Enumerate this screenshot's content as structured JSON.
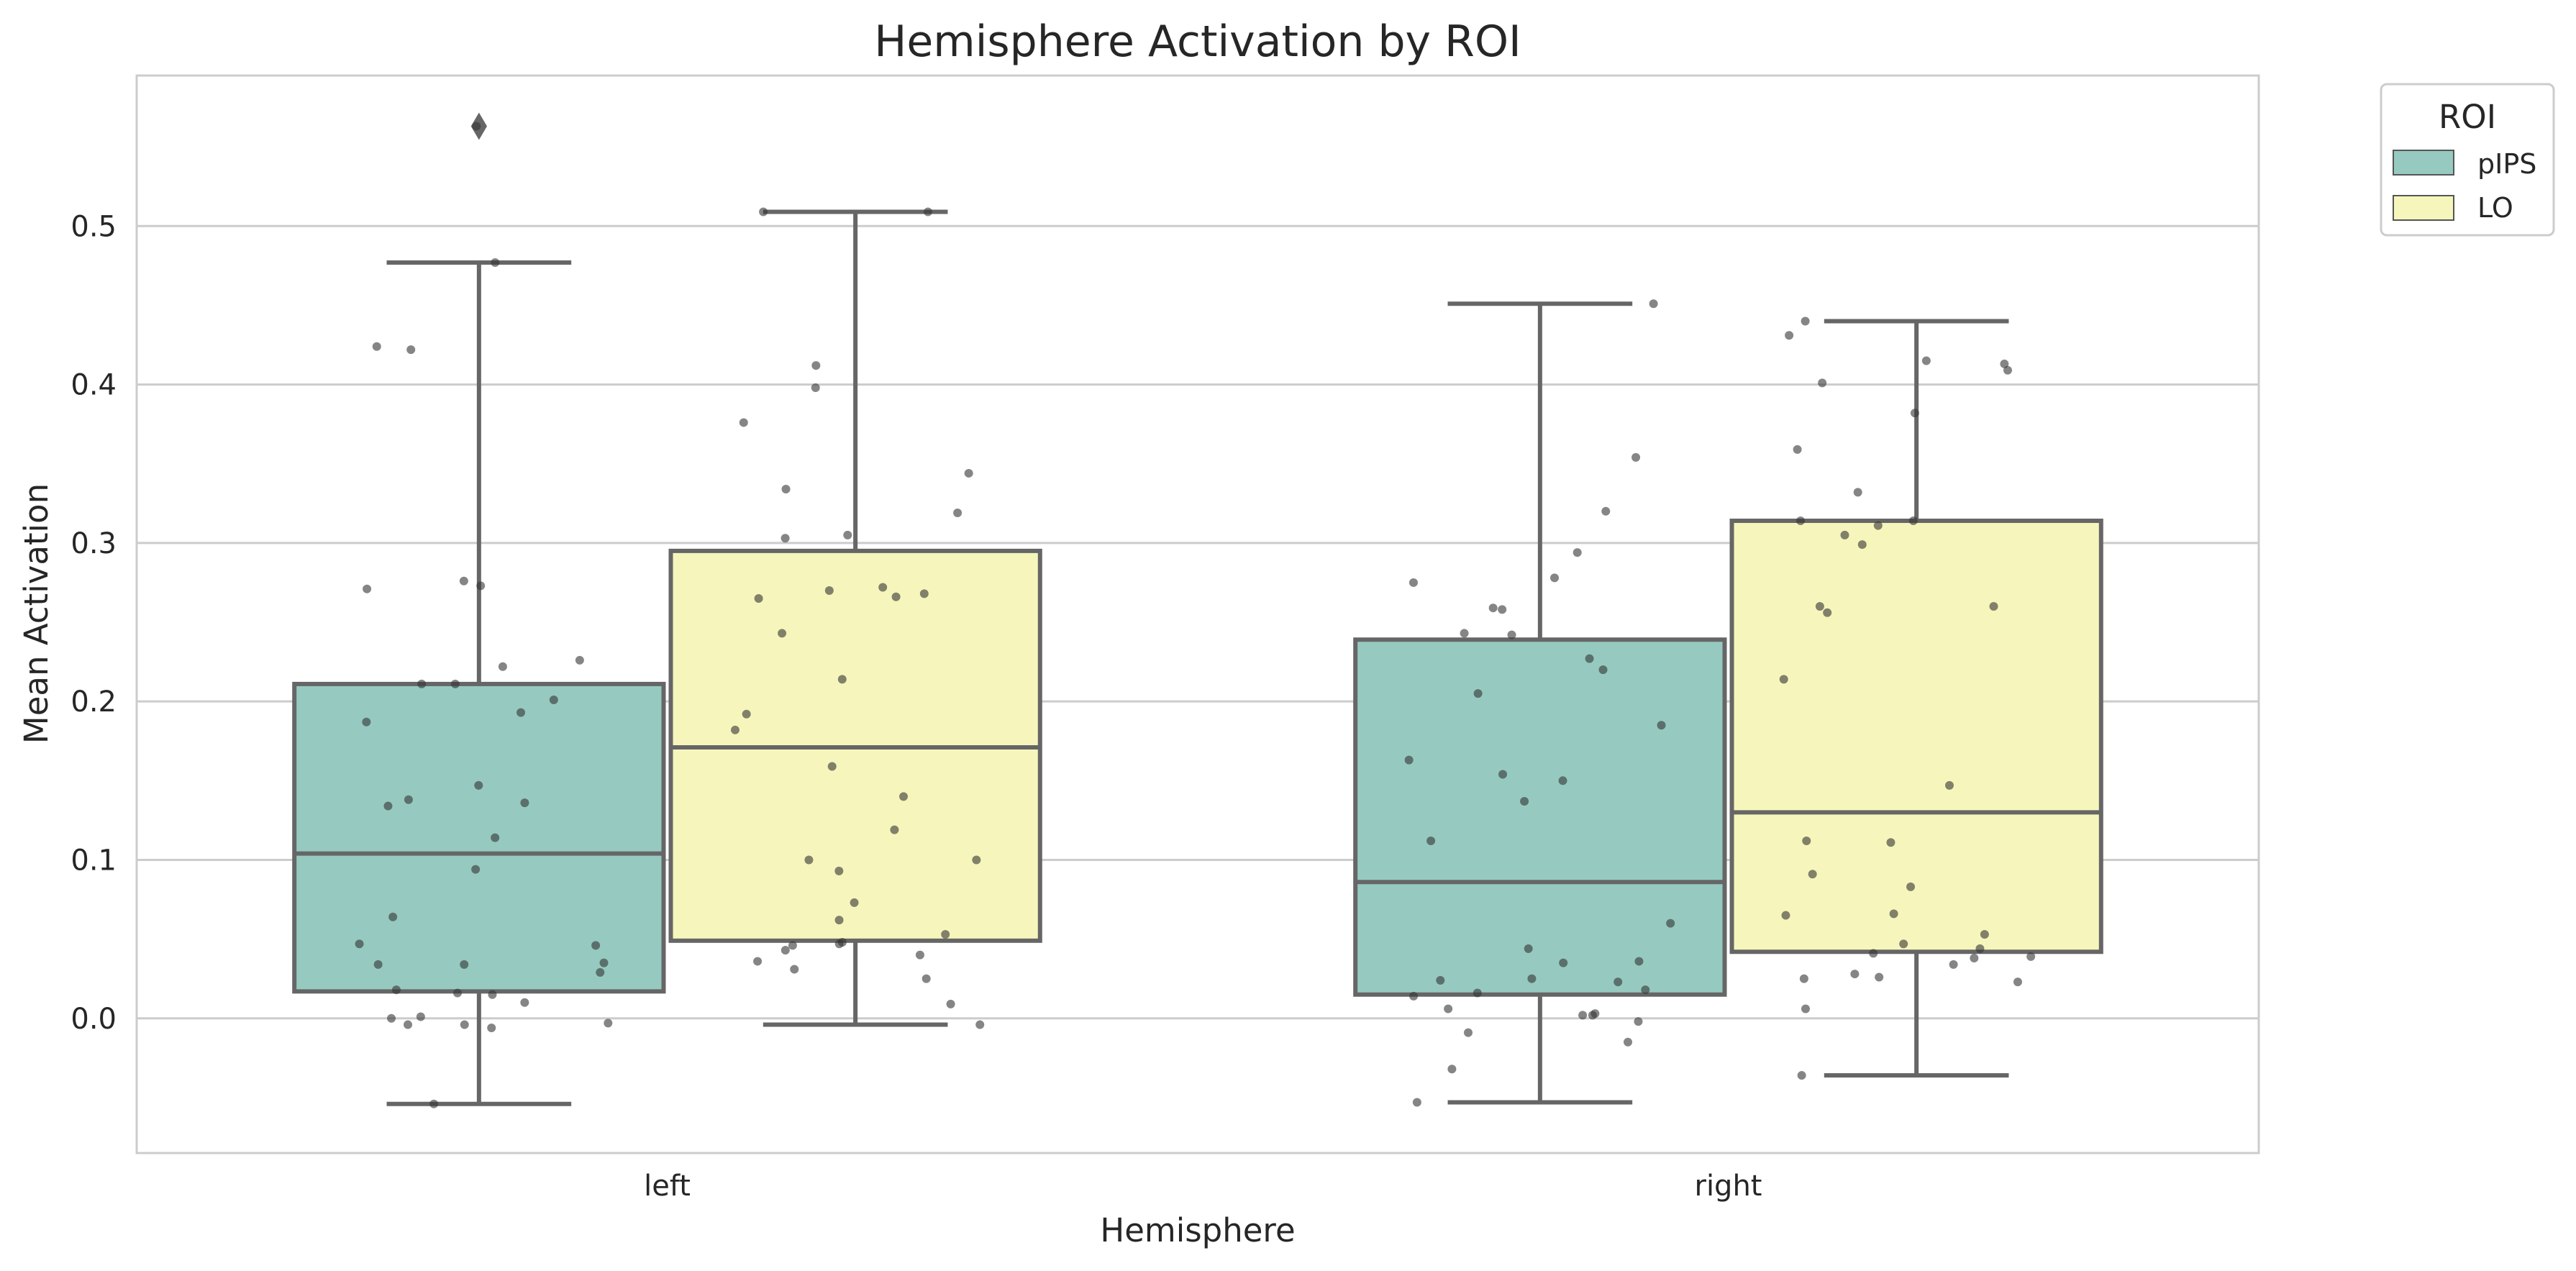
{
  "chart_data": {
    "type": "box",
    "title": "Hemisphere Activation by ROI",
    "xlabel": "Hemisphere",
    "ylabel": "Mean Activation",
    "categories": [
      "left",
      "right"
    ],
    "ylim": [
      -0.085,
      0.595
    ],
    "yticks": [
      0.0,
      0.1,
      0.2,
      0.3,
      0.4,
      0.5
    ],
    "ytick_labels": [
      "0.0",
      "0.1",
      "0.2",
      "0.3",
      "0.4",
      "0.5"
    ],
    "grid": "horizontal",
    "legend": {
      "title": "ROI",
      "placement": "outside-top-right",
      "entries": [
        {
          "label": "pIPS",
          "color": "#96cac1"
        },
        {
          "label": "LO",
          "color": "#f6f6bc"
        }
      ]
    },
    "colors": {
      "box_edge": "#666666",
      "points": "#333333",
      "grid": "#cccccc",
      "axes": "#cccccc"
    },
    "boxes": [
      {
        "category": "left",
        "series": "pIPS",
        "whisker_low": -0.054,
        "q1": 0.017,
        "median": 0.104,
        "q3": 0.211,
        "whisker_high": 0.477,
        "outliers": [
          0.563
        ],
        "points": [
          0.563,
          0.477,
          0.424,
          0.422,
          0.276,
          0.273,
          0.271,
          0.226,
          0.222,
          0.211,
          0.211,
          0.201,
          0.193,
          0.187,
          0.147,
          0.138,
          0.136,
          0.134,
          0.114,
          0.094,
          0.064,
          0.047,
          0.046,
          0.035,
          0.034,
          0.034,
          0.029,
          0.018,
          0.016,
          0.015,
          0.01,
          0.001,
          0.0,
          -0.003,
          -0.004,
          -0.004,
          -0.006,
          -0.054
        ]
      },
      {
        "category": "left",
        "series": "LO",
        "whisker_low": -0.004,
        "q1": 0.049,
        "median": 0.171,
        "q3": 0.295,
        "whisker_high": 0.509,
        "outliers": [],
        "points": [
          0.509,
          0.509,
          0.412,
          0.398,
          0.376,
          0.344,
          0.334,
          0.319,
          0.305,
          0.303,
          0.272,
          0.27,
          0.268,
          0.266,
          0.265,
          0.243,
          0.214,
          0.192,
          0.182,
          0.159,
          0.14,
          0.119,
          0.1,
          0.1,
          0.093,
          0.073,
          0.062,
          0.053,
          0.048,
          0.047,
          0.046,
          0.043,
          0.04,
          0.036,
          0.031,
          0.025,
          0.009,
          -0.004
        ]
      },
      {
        "category": "right",
        "series": "pIPS",
        "whisker_low": -0.053,
        "q1": 0.015,
        "median": 0.086,
        "q3": 0.239,
        "whisker_high": 0.451,
        "outliers": [],
        "points": [
          0.451,
          0.354,
          0.32,
          0.294,
          0.278,
          0.275,
          0.259,
          0.258,
          0.243,
          0.242,
          0.227,
          0.22,
          0.205,
          0.185,
          0.163,
          0.154,
          0.15,
          0.137,
          0.112,
          0.06,
          0.044,
          0.036,
          0.035,
          0.025,
          0.024,
          0.023,
          0.018,
          0.016,
          0.014,
          0.006,
          0.003,
          0.002,
          0.002,
          -0.002,
          -0.009,
          -0.015,
          -0.032,
          -0.053
        ]
      },
      {
        "category": "right",
        "series": "LO",
        "whisker_low": -0.036,
        "q1": 0.042,
        "median": 0.13,
        "q3": 0.314,
        "whisker_high": 0.44,
        "outliers": [],
        "points": [
          0.44,
          0.431,
          0.415,
          0.413,
          0.409,
          0.401,
          0.382,
          0.359,
          0.332,
          0.314,
          0.314,
          0.311,
          0.305,
          0.299,
          0.26,
          0.26,
          0.256,
          0.214,
          0.147,
          0.112,
          0.111,
          0.091,
          0.083,
          0.066,
          0.065,
          0.053,
          0.047,
          0.044,
          0.041,
          0.039,
          0.038,
          0.034,
          0.028,
          0.026,
          0.025,
          0.023,
          0.006,
          -0.036
        ]
      }
    ]
  }
}
